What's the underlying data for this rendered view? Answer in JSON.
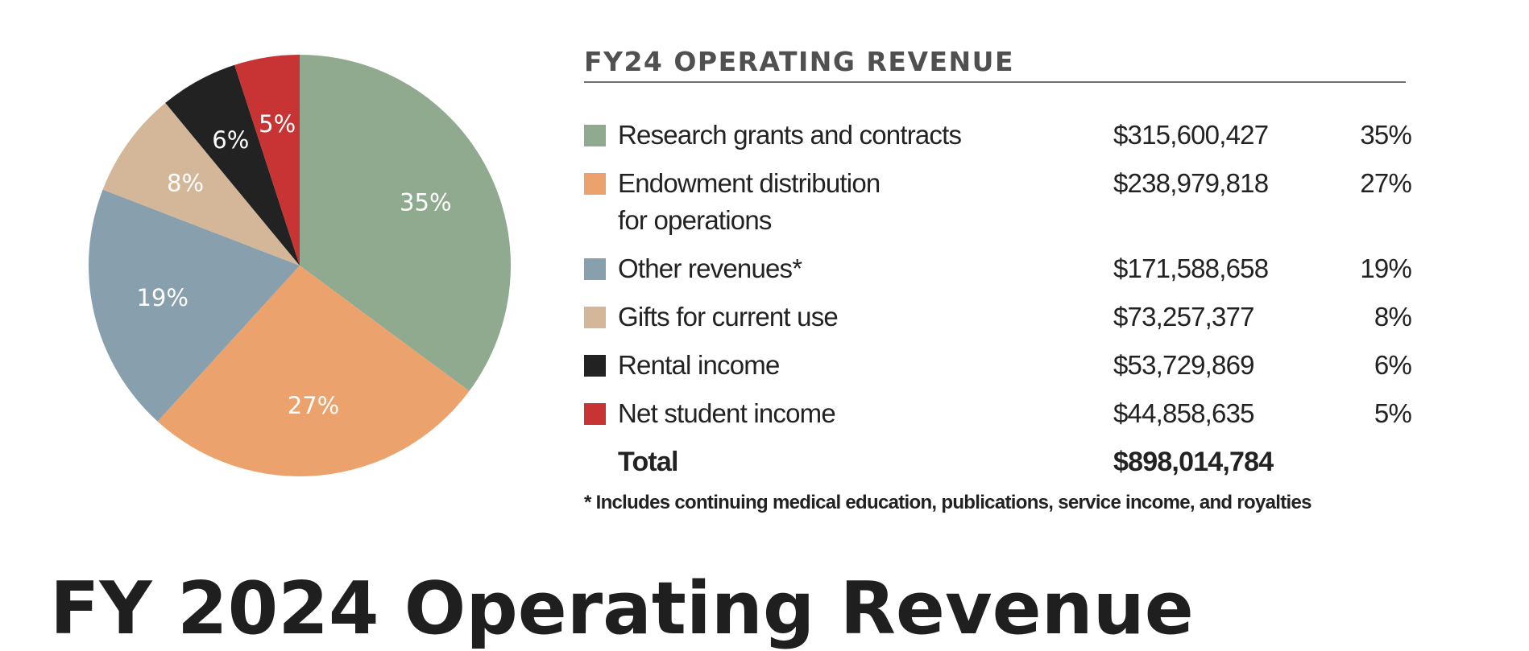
{
  "chart_data": {
    "type": "pie",
    "title": "FY24 OPERATING REVENUE",
    "slices": [
      {
        "label": "Research grants and contracts",
        "amount": "$315,600,427",
        "value": 315600427,
        "percent": "35%",
        "color": "#8faa8f"
      },
      {
        "label": "Endowment distribution for operations",
        "label_lines": [
          "Endowment distribution",
          "for operations"
        ],
        "amount": "$238,979,818",
        "value": 238979818,
        "percent": "27%",
        "color": "#eca26d"
      },
      {
        "label": "Other revenues*",
        "amount": "$171,588,658",
        "value": 171588658,
        "percent": "19%",
        "color": "#889fad"
      },
      {
        "label": "Gifts for current use",
        "amount": "$73,257,377",
        "value": 73257377,
        "percent": "8%",
        "color": "#d4b698"
      },
      {
        "label": "Rental income",
        "amount": "$53,729,869",
        "value": 53729869,
        "percent": "6%",
        "color": "#222222"
      },
      {
        "label": "Net student income",
        "amount": "$44,858,635",
        "value": 44858635,
        "percent": "5%",
        "color": "#c83333"
      }
    ],
    "total_label": "Total",
    "total_amount": "$898,014,784",
    "start_angle": "12 o'clock",
    "direction": "clockwise"
  },
  "footnote": "* Includes continuing medical education, publications, service income, and royalties",
  "bottom_heading": "FY 2024 Operating Revenue"
}
